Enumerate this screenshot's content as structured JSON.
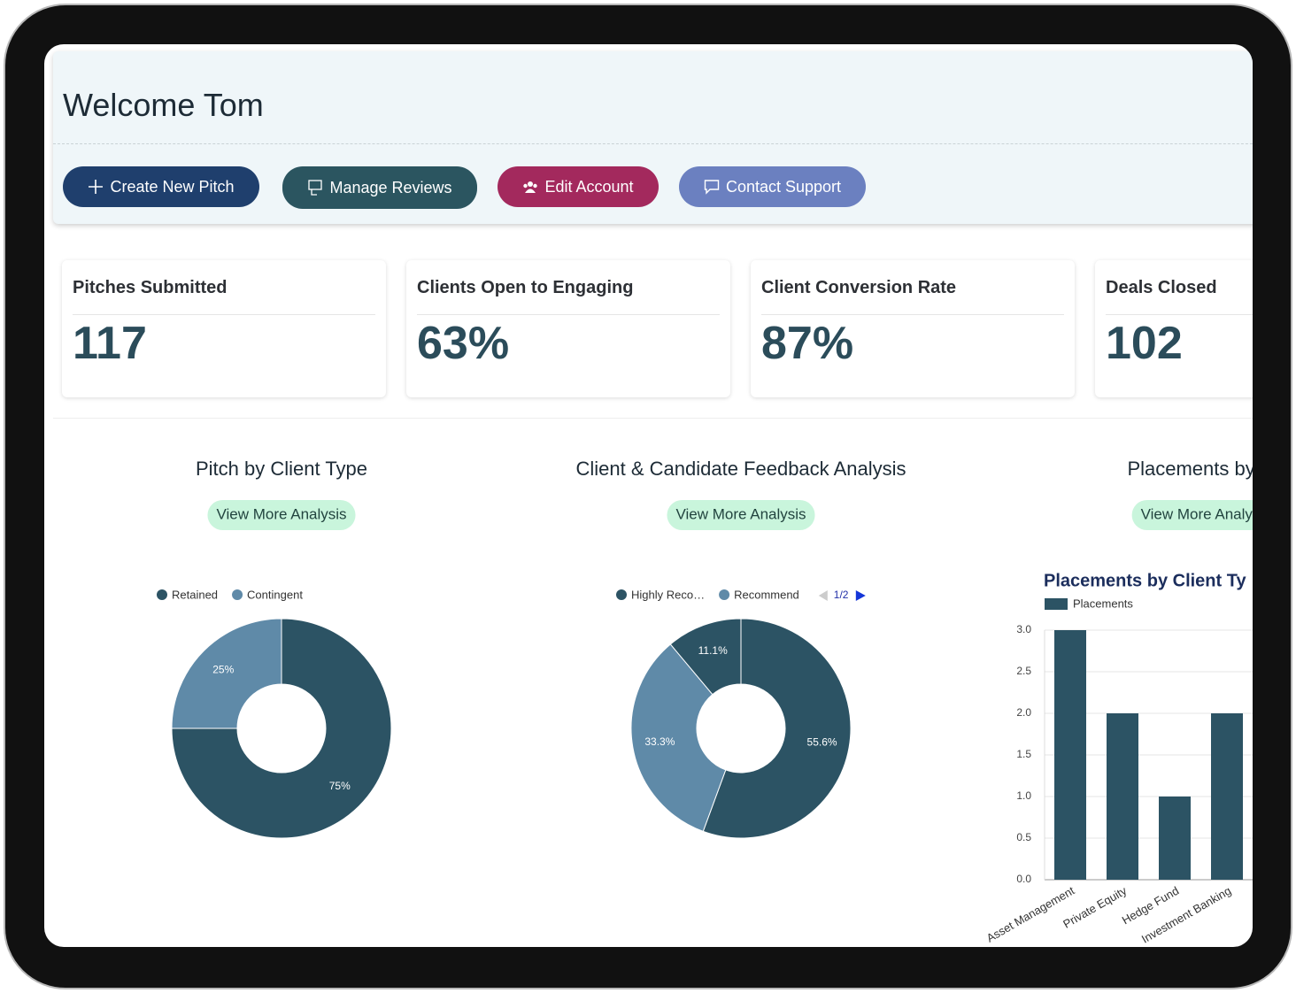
{
  "header": {
    "title": "Welcome Tom"
  },
  "actions": [
    "Create New Pitch",
    "Manage Reviews",
    "Edit Account",
    "Contact Support"
  ],
  "kpis": [
    {
      "label": "Pitches Submitted",
      "value": "117"
    },
    {
      "label": "Clients Open to Engaging",
      "value": "63%"
    },
    {
      "label": "Client Conversion Rate",
      "value": "87%"
    },
    {
      "label": "Deals Closed",
      "value": "102"
    }
  ],
  "panels": [
    {
      "title": "Pitch by Client Type",
      "button": "View More Analysis"
    },
    {
      "title": "Client & Candidate Feedback Analysis",
      "button": "View More Analysis"
    },
    {
      "title": "Placements by S",
      "button": "View More Analys"
    }
  ],
  "chart_data": [
    {
      "type": "donut",
      "categories": [
        "Retained",
        "Contingent"
      ],
      "values": [
        75,
        25
      ],
      "value_labels": [
        "75%",
        "25%"
      ],
      "colors": [
        "#2c5364",
        "#5f8aa8"
      ]
    },
    {
      "type": "donut",
      "categories": [
        "Highly Reco…",
        "Recommend",
        null
      ],
      "values": [
        55.6,
        33.3,
        11.1
      ],
      "value_labels": [
        "55.6%",
        "33.3%",
        "11.1%"
      ],
      "colors": [
        "#2c5364",
        "#5f8aa8",
        "#2c5364"
      ],
      "legend_page": "1/2"
    },
    {
      "type": "bar",
      "title": "Placements by Client Ty",
      "categories": [
        "Asset Management",
        "Private Equity",
        "Hedge Fund",
        "Investment Banking"
      ],
      "series": [
        {
          "name": "Placements",
          "color": "#2c5364",
          "values": [
            3,
            2,
            1,
            2
          ]
        }
      ],
      "ylim": [
        0,
        3
      ],
      "yticks": [
        {
          "value": 0,
          "label": "0.0"
        },
        {
          "value": 0.5,
          "label": "0.5"
        },
        {
          "value": 1,
          "label": "1.0"
        },
        {
          "value": 1.5,
          "label": "1.5"
        },
        {
          "value": 2,
          "label": "2.0"
        },
        {
          "value": 2.5,
          "label": "2.5"
        },
        {
          "value": 3,
          "label": "3.0"
        }
      ],
      "grid": true
    }
  ]
}
